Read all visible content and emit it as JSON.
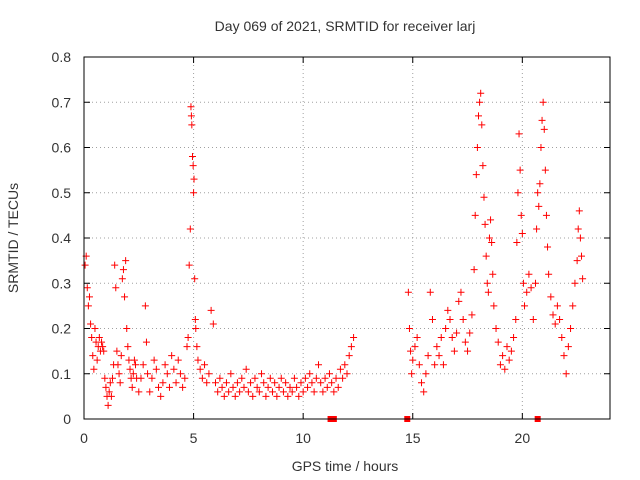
{
  "chart_data": {
    "type": "scatter",
    "title": "Day 069 of 2021, SRMTID for receiver larj",
    "xlabel": "GPS time / hours",
    "ylabel": "SRMTID / TECUs",
    "xlim": [
      0,
      24
    ],
    "ylim": [
      0,
      0.8
    ],
    "xticks": [
      0,
      5,
      10,
      15,
      20
    ],
    "yticks": [
      0,
      0.1,
      0.2,
      0.3,
      0.4,
      0.5,
      0.6,
      0.7,
      0.8
    ],
    "xtick_labels": [
      "0",
      "5",
      "10",
      "15",
      "20"
    ],
    "ytick_labels": [
      "0",
      "0.1",
      "0.2",
      "0.3",
      "0.4",
      "0.5",
      "0.6",
      "0.7",
      "0.8"
    ],
    "grid": true,
    "marker": "plus",
    "color": "#ff0000",
    "series": [
      {
        "name": "SRMTID",
        "points": [
          [
            0.05,
            0.34
          ],
          [
            0.1,
            0.36
          ],
          [
            0.15,
            0.29
          ],
          [
            0.2,
            0.25
          ],
          [
            0.25,
            0.27
          ],
          [
            0.3,
            0.21
          ],
          [
            0.35,
            0.18
          ],
          [
            0.4,
            0.14
          ],
          [
            0.45,
            0.11
          ],
          [
            0.5,
            0.2
          ],
          [
            0.55,
            0.17
          ],
          [
            0.6,
            0.13
          ],
          [
            0.65,
            0.16
          ],
          [
            0.7,
            0.18
          ],
          [
            0.75,
            0.15
          ],
          [
            0.8,
            0.17
          ],
          [
            0.85,
            0.16
          ],
          [
            0.9,
            0.15
          ],
          [
            0.95,
            0.09
          ],
          [
            1.0,
            0.07
          ],
          [
            1.05,
            0.05
          ],
          [
            1.1,
            0.03
          ],
          [
            1.15,
            0.06
          ],
          [
            1.2,
            0.08
          ],
          [
            1.25,
            0.05
          ],
          [
            1.3,
            0.09
          ],
          [
            1.35,
            0.12
          ],
          [
            1.4,
            0.34
          ],
          [
            1.45,
            0.29
          ],
          [
            1.5,
            0.15
          ],
          [
            1.55,
            0.12
          ],
          [
            1.6,
            0.1
          ],
          [
            1.65,
            0.08
          ],
          [
            1.7,
            0.14
          ],
          [
            1.75,
            0.31
          ],
          [
            1.8,
            0.33
          ],
          [
            1.85,
            0.27
          ],
          [
            1.9,
            0.35
          ],
          [
            1.95,
            0.2
          ],
          [
            2.0,
            0.16
          ],
          [
            2.05,
            0.13
          ],
          [
            2.1,
            0.11
          ],
          [
            2.15,
            0.09
          ],
          [
            2.2,
            0.07
          ],
          [
            2.25,
            0.1
          ],
          [
            2.3,
            0.13
          ],
          [
            2.35,
            0.12
          ],
          [
            2.4,
            0.09
          ],
          [
            2.5,
            0.06
          ],
          [
            2.6,
            0.09
          ],
          [
            2.7,
            0.12
          ],
          [
            2.8,
            0.25
          ],
          [
            2.85,
            0.17
          ],
          [
            2.9,
            0.1
          ],
          [
            3.0,
            0.06
          ],
          [
            3.1,
            0.09
          ],
          [
            3.2,
            0.13
          ],
          [
            3.3,
            0.11
          ],
          [
            3.4,
            0.07
          ],
          [
            3.5,
            0.05
          ],
          [
            3.6,
            0.08
          ],
          [
            3.7,
            0.12
          ],
          [
            3.8,
            0.1
          ],
          [
            3.9,
            0.07
          ],
          [
            4.0,
            0.14
          ],
          [
            4.1,
            0.11
          ],
          [
            4.2,
            0.08
          ],
          [
            4.3,
            0.13
          ],
          [
            4.4,
            0.1
          ],
          [
            4.5,
            0.07
          ],
          [
            4.6,
            0.09
          ],
          [
            4.7,
            0.16
          ],
          [
            4.75,
            0.18
          ],
          [
            4.8,
            0.34
          ],
          [
            4.85,
            0.42
          ],
          [
            4.88,
            0.69
          ],
          [
            4.9,
            0.67
          ],
          [
            4.92,
            0.65
          ],
          [
            4.95,
            0.58
          ],
          [
            4.98,
            0.56
          ],
          [
            5.0,
            0.5
          ],
          [
            5.02,
            0.53
          ],
          [
            5.05,
            0.31
          ],
          [
            5.08,
            0.22
          ],
          [
            5.1,
            0.2
          ],
          [
            5.15,
            0.16
          ],
          [
            5.2,
            0.13
          ],
          [
            5.3,
            0.11
          ],
          [
            5.4,
            0.09
          ],
          [
            5.5,
            0.12
          ],
          [
            5.6,
            0.08
          ],
          [
            5.7,
            0.1
          ],
          [
            5.8,
            0.24
          ],
          [
            5.9,
            0.21
          ],
          [
            6.0,
            0.08
          ],
          [
            6.1,
            0.06
          ],
          [
            6.2,
            0.09
          ],
          [
            6.3,
            0.07
          ],
          [
            6.4,
            0.05
          ],
          [
            6.5,
            0.08
          ],
          [
            6.6,
            0.06
          ],
          [
            6.7,
            0.1
          ],
          [
            6.8,
            0.07
          ],
          [
            6.9,
            0.05
          ],
          [
            7.0,
            0.08
          ],
          [
            7.1,
            0.06
          ],
          [
            7.2,
            0.09
          ],
          [
            7.3,
            0.07
          ],
          [
            7.4,
            0.11
          ],
          [
            7.5,
            0.06
          ],
          [
            7.6,
            0.08
          ],
          [
            7.7,
            0.05
          ],
          [
            7.8,
            0.09
          ],
          [
            7.9,
            0.07
          ],
          [
            8.0,
            0.06
          ],
          [
            8.1,
            0.1
          ],
          [
            8.2,
            0.08
          ],
          [
            8.3,
            0.05
          ],
          [
            8.4,
            0.07
          ],
          [
            8.5,
            0.09
          ],
          [
            8.6,
            0.06
          ],
          [
            8.7,
            0.08
          ],
          [
            8.8,
            0.05
          ],
          [
            8.9,
            0.07
          ],
          [
            9.0,
            0.09
          ],
          [
            9.1,
            0.06
          ],
          [
            9.2,
            0.08
          ],
          [
            9.3,
            0.05
          ],
          [
            9.4,
            0.07
          ],
          [
            9.5,
            0.06
          ],
          [
            9.6,
            0.09
          ],
          [
            9.7,
            0.07
          ],
          [
            9.8,
            0.05
          ],
          [
            9.9,
            0.08
          ],
          [
            10.0,
            0.06
          ],
          [
            10.1,
            0.09
          ],
          [
            10.2,
            0.07
          ],
          [
            10.3,
            0.1
          ],
          [
            10.4,
            0.08
          ],
          [
            10.5,
            0.06
          ],
          [
            10.6,
            0.09
          ],
          [
            10.7,
            0.12
          ],
          [
            10.8,
            0.08
          ],
          [
            10.9,
            0.06
          ],
          [
            11.0,
            0.09
          ],
          [
            11.1,
            0.07
          ],
          [
            11.2,
            0.1
          ],
          [
            11.3,
            0.08
          ],
          [
            11.4,
            0.06
          ],
          [
            11.5,
            0.09
          ],
          [
            11.6,
            0.07
          ],
          [
            11.7,
            0.11
          ],
          [
            11.8,
            0.09
          ],
          [
            11.9,
            0.12
          ],
          [
            12.0,
            0.1
          ],
          [
            12.1,
            0.14
          ],
          [
            12.2,
            0.16
          ],
          [
            12.3,
            0.18
          ],
          [
            14.8,
            0.28
          ],
          [
            14.85,
            0.2
          ],
          [
            14.9,
            0.15
          ],
          [
            14.95,
            0.1
          ],
          [
            15.0,
            0.13
          ],
          [
            15.1,
            0.16
          ],
          [
            15.2,
            0.18
          ],
          [
            15.3,
            0.12
          ],
          [
            15.4,
            0.08
          ],
          [
            15.5,
            0.06
          ],
          [
            15.6,
            0.1
          ],
          [
            15.7,
            0.14
          ],
          [
            15.8,
            0.28
          ],
          [
            15.9,
            0.22
          ],
          [
            16.0,
            0.12
          ],
          [
            16.1,
            0.16
          ],
          [
            16.2,
            0.14
          ],
          [
            16.3,
            0.18
          ],
          [
            16.4,
            0.12
          ],
          [
            16.5,
            0.2
          ],
          [
            16.6,
            0.24
          ],
          [
            16.7,
            0.22
          ],
          [
            16.8,
            0.18
          ],
          [
            16.9,
            0.15
          ],
          [
            17.0,
            0.19
          ],
          [
            17.1,
            0.26
          ],
          [
            17.2,
            0.28
          ],
          [
            17.3,
            0.22
          ],
          [
            17.4,
            0.17
          ],
          [
            17.5,
            0.15
          ],
          [
            17.6,
            0.19
          ],
          [
            17.7,
            0.23
          ],
          [
            17.8,
            0.33
          ],
          [
            17.85,
            0.45
          ],
          [
            17.9,
            0.54
          ],
          [
            17.95,
            0.6
          ],
          [
            18.0,
            0.67
          ],
          [
            18.05,
            0.7
          ],
          [
            18.1,
            0.72
          ],
          [
            18.15,
            0.65
          ],
          [
            18.2,
            0.56
          ],
          [
            18.25,
            0.49
          ],
          [
            18.3,
            0.43
          ],
          [
            18.35,
            0.36
          ],
          [
            18.4,
            0.3
          ],
          [
            18.45,
            0.28
          ],
          [
            18.5,
            0.4
          ],
          [
            18.55,
            0.44
          ],
          [
            18.6,
            0.39
          ],
          [
            18.65,
            0.32
          ],
          [
            18.7,
            0.25
          ],
          [
            18.8,
            0.2
          ],
          [
            18.9,
            0.17
          ],
          [
            19.0,
            0.12
          ],
          [
            19.1,
            0.14
          ],
          [
            19.2,
            0.11
          ],
          [
            19.3,
            0.16
          ],
          [
            19.4,
            0.13
          ],
          [
            19.5,
            0.15
          ],
          [
            19.6,
            0.18
          ],
          [
            19.7,
            0.22
          ],
          [
            19.75,
            0.39
          ],
          [
            19.8,
            0.5
          ],
          [
            19.85,
            0.63
          ],
          [
            19.9,
            0.55
          ],
          [
            19.95,
            0.45
          ],
          [
            20.0,
            0.41
          ],
          [
            20.05,
            0.3
          ],
          [
            20.1,
            0.25
          ],
          [
            20.2,
            0.28
          ],
          [
            20.3,
            0.32
          ],
          [
            20.4,
            0.29
          ],
          [
            20.5,
            0.22
          ],
          [
            20.6,
            0.3
          ],
          [
            20.65,
            0.42
          ],
          [
            20.7,
            0.5
          ],
          [
            20.75,
            0.47
          ],
          [
            20.8,
            0.52
          ],
          [
            20.85,
            0.6
          ],
          [
            20.9,
            0.66
          ],
          [
            20.95,
            0.7
          ],
          [
            21.0,
            0.64
          ],
          [
            21.05,
            0.55
          ],
          [
            21.1,
            0.45
          ],
          [
            21.15,
            0.38
          ],
          [
            21.2,
            0.32
          ],
          [
            21.3,
            0.27
          ],
          [
            21.4,
            0.23
          ],
          [
            21.5,
            0.21
          ],
          [
            21.6,
            0.25
          ],
          [
            21.7,
            0.22
          ],
          [
            21.8,
            0.18
          ],
          [
            21.9,
            0.14
          ],
          [
            22.0,
            0.1
          ],
          [
            22.1,
            0.16
          ],
          [
            22.2,
            0.2
          ],
          [
            22.3,
            0.25
          ],
          [
            22.4,
            0.3
          ],
          [
            22.5,
            0.35
          ],
          [
            22.55,
            0.42
          ],
          [
            22.6,
            0.46
          ],
          [
            22.65,
            0.4
          ],
          [
            22.7,
            0.36
          ],
          [
            22.75,
            0.31
          ]
        ]
      },
      {
        "name": "data gap markers",
        "points": [
          [
            11.25,
            0.0
          ],
          [
            11.4,
            0.0
          ],
          [
            14.75,
            0.0
          ],
          [
            20.7,
            0.0
          ]
        ]
      }
    ]
  }
}
